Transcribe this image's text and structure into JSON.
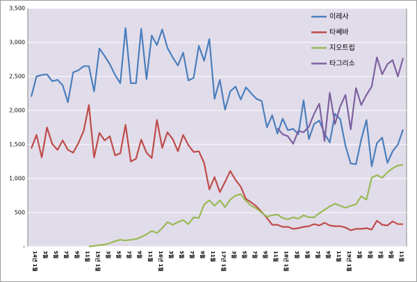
{
  "chart_data": {
    "type": "line",
    "categories": [
      "14년 1월",
      null,
      "3월",
      null,
      "5월",
      null,
      "7월",
      null,
      "9월",
      null,
      "11월",
      null,
      "15년 1월",
      null,
      "3월",
      null,
      "5월",
      null,
      "7월",
      null,
      "9월",
      null,
      "11월",
      null,
      "16년 1월",
      null,
      "3월",
      null,
      "5월",
      null,
      "7월",
      null,
      "9월",
      null,
      "11월",
      null,
      "17년 1월",
      null,
      "3월",
      null,
      "5월",
      null,
      "7월",
      null,
      "9월",
      null,
      "11월",
      null,
      "18년 1월",
      null,
      "3월",
      null,
      "5월",
      null,
      "7월",
      null,
      "9월",
      null,
      "11월",
      null,
      "19년 1월",
      null,
      "3월",
      null,
      "5월",
      null,
      "7월",
      null,
      "9월",
      null,
      "11월",
      null
    ],
    "series": [
      {
        "name": "이레사",
        "color": "#4a7ebb",
        "values": [
          2200,
          2500,
          2520,
          2530,
          2430,
          2450,
          2370,
          2120,
          2560,
          2590,
          2650,
          2650,
          2280,
          2910,
          2800,
          2680,
          2520,
          2400,
          3210,
          2400,
          2400,
          3200,
          2460,
          3100,
          2960,
          3190,
          2920,
          2780,
          2660,
          2850,
          2440,
          2480,
          2950,
          2730,
          3050,
          2170,
          2450,
          2010,
          2280,
          2350,
          2160,
          2340,
          2250,
          2170,
          2140,
          1750,
          1930,
          1660,
          1880,
          1710,
          1730,
          1650,
          2150,
          1580,
          1800,
          1850,
          1660,
          1530,
          1950,
          1870,
          1480,
          1220,
          1210,
          1570,
          1860,
          1180,
          1520,
          1600,
          1230,
          1400,
          1500,
          1720
        ]
      },
      {
        "name": "타쎄바",
        "color": "#be4b48",
        "values": [
          1440,
          1640,
          1310,
          1750,
          1510,
          1420,
          1560,
          1420,
          1380,
          1520,
          1700,
          2080,
          1310,
          1670,
          1560,
          1620,
          1340,
          1370,
          1790,
          1250,
          1290,
          1570,
          1380,
          1300,
          1860,
          1450,
          1680,
          1580,
          1400,
          1640,
          1490,
          1390,
          1400,
          1230,
          840,
          1020,
          800,
          950,
          1110,
          980,
          880,
          700,
          650,
          590,
          510,
          420,
          320,
          320,
          290,
          290,
          260,
          270,
          290,
          300,
          330,
          310,
          350,
          310,
          300,
          300,
          280,
          240,
          260,
          260,
          270,
          250,
          380,
          320,
          310,
          370,
          330,
          330
        ]
      },
      {
        "name": "지오트립",
        "color": "#98b954",
        "values": [
          null,
          null,
          null,
          null,
          null,
          null,
          null,
          null,
          null,
          null,
          null,
          0,
          10,
          20,
          30,
          50,
          80,
          100,
          90,
          100,
          110,
          140,
          180,
          230,
          200,
          270,
          360,
          320,
          360,
          390,
          330,
          430,
          420,
          620,
          680,
          600,
          680,
          580,
          690,
          750,
          770,
          670,
          600,
          560,
          500,
          440,
          460,
          470,
          420,
          400,
          430,
          410,
          460,
          430,
          430,
          490,
          540,
          590,
          630,
          600,
          570,
          600,
          620,
          740,
          690,
          1010,
          1050,
          1010,
          1090,
          1150,
          1190,
          1200
        ]
      },
      {
        "name": "타그리소",
        "color": "#7d60a0",
        "values": [
          null,
          null,
          null,
          null,
          null,
          null,
          null,
          null,
          null,
          null,
          null,
          null,
          null,
          null,
          null,
          null,
          null,
          null,
          null,
          null,
          null,
          null,
          null,
          null,
          null,
          null,
          null,
          null,
          null,
          null,
          null,
          null,
          null,
          null,
          null,
          null,
          null,
          null,
          null,
          null,
          null,
          null,
          null,
          null,
          null,
          null,
          null,
          1740,
          1650,
          1620,
          1510,
          1700,
          1680,
          1760,
          1950,
          2100,
          1550,
          2260,
          1800,
          2060,
          2230,
          1720,
          2330,
          2080,
          2230,
          2350,
          2780,
          2530,
          2680,
          2740,
          2500,
          2770
        ]
      }
    ],
    "ylim": [
      0,
      3500
    ],
    "yticks": [
      {
        "value": 0,
        "label": "-"
      },
      500,
      {
        "value": 1000,
        "label": "1,000"
      },
      {
        "value": 1500,
        "label": "1,500"
      },
      {
        "value": 2000,
        "label": "2,000"
      },
      {
        "value": 2500,
        "label": "2,500"
      },
      {
        "value": 3000,
        "label": "3,000"
      },
      {
        "value": 3500,
        "label": "3,500"
      }
    ],
    "grid": true,
    "legend": "top-right"
  }
}
